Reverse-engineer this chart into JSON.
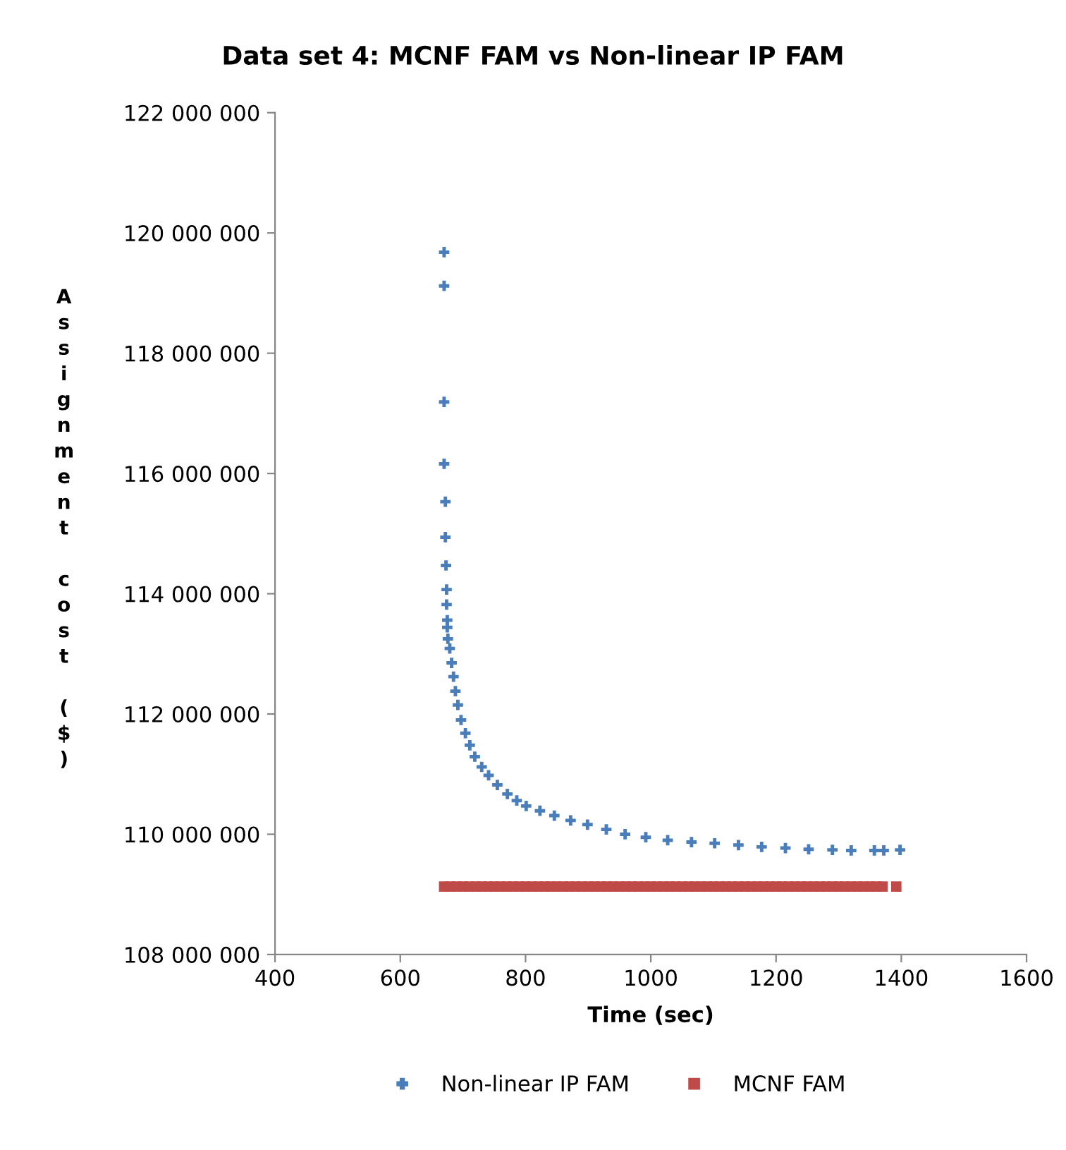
{
  "chart_data": {
    "type": "scatter",
    "title": "Data set 4: MCNF FAM vs Non-linear IP FAM",
    "xlabel": "Time (sec)",
    "ylabel": "Assignment cost ($)",
    "xlim": [
      400,
      1600
    ],
    "xticks": [
      400,
      600,
      800,
      1000,
      1200,
      1400,
      1600
    ],
    "ylim": [
      108000000,
      122000000
    ],
    "yticks": [
      {
        "value": 108000000,
        "label": "108 000 000"
      },
      {
        "value": 110000000,
        "label": "110 000 000"
      },
      {
        "value": 112000000,
        "label": "112 000 000"
      },
      {
        "value": 114000000,
        "label": "114 000 000"
      },
      {
        "value": 116000000,
        "label": "116 000 000"
      },
      {
        "value": 118000000,
        "label": "118 000 000"
      },
      {
        "value": 120000000,
        "label": "120 000 000"
      },
      {
        "value": 122000000,
        "label": "122 000 000"
      }
    ],
    "grid": false,
    "legend": "bottom",
    "series": [
      {
        "name": "Non-linear IP FAM",
        "color": "#4a7ebb",
        "marker": "cross",
        "x": [
          670,
          670,
          670,
          670,
          672,
          672,
          673,
          674,
          674,
          675,
          675,
          676,
          679,
          682,
          685,
          688,
          692,
          697,
          704,
          711,
          719,
          730,
          741,
          755,
          771,
          786,
          801,
          823,
          846,
          872,
          899,
          929,
          959,
          992,
          1027,
          1065,
          1102,
          1140,
          1177,
          1215,
          1252,
          1290,
          1320,
          1357,
          1372,
          1398
        ],
        "values": [
          119680000,
          119120000,
          117190000,
          116160000,
          115530000,
          114940000,
          114470000,
          114070000,
          113820000,
          113560000,
          113440000,
          113250000,
          113090000,
          112850000,
          112620000,
          112380000,
          112150000,
          111900000,
          111680000,
          111480000,
          111290000,
          111120000,
          110980000,
          110820000,
          110670000,
          110560000,
          110470000,
          110390000,
          110310000,
          110230000,
          110160000,
          110080000,
          110000000,
          109950000,
          109900000,
          109870000,
          109850000,
          109820000,
          109790000,
          109770000,
          109750000,
          109740000,
          109730000,
          109730000,
          109730000,
          109740000
        ]
      },
      {
        "name": "MCNF FAM",
        "color": "#be4b48",
        "marker": "square",
        "x": [
          670,
          680,
          690,
          700,
          710,
          720,
          730,
          740,
          750,
          760,
          770,
          780,
          790,
          800,
          810,
          820,
          830,
          840,
          850,
          860,
          870,
          880,
          890,
          900,
          910,
          920,
          930,
          940,
          950,
          960,
          970,
          980,
          990,
          1000,
          1010,
          1020,
          1030,
          1040,
          1050,
          1060,
          1070,
          1080,
          1090,
          1100,
          1110,
          1120,
          1130,
          1140,
          1150,
          1160,
          1170,
          1180,
          1190,
          1200,
          1210,
          1220,
          1230,
          1240,
          1250,
          1260,
          1270,
          1280,
          1290,
          1300,
          1310,
          1320,
          1330,
          1340,
          1350,
          1360,
          1370,
          1392
        ],
        "values": [
          109130000,
          109130000,
          109130000,
          109130000,
          109130000,
          109130000,
          109130000,
          109130000,
          109130000,
          109130000,
          109130000,
          109130000,
          109130000,
          109130000,
          109130000,
          109130000,
          109130000,
          109130000,
          109130000,
          109130000,
          109130000,
          109130000,
          109130000,
          109130000,
          109130000,
          109130000,
          109130000,
          109130000,
          109130000,
          109130000,
          109130000,
          109130000,
          109130000,
          109130000,
          109130000,
          109130000,
          109130000,
          109130000,
          109130000,
          109130000,
          109130000,
          109130000,
          109130000,
          109130000,
          109130000,
          109130000,
          109130000,
          109130000,
          109130000,
          109130000,
          109130000,
          109130000,
          109130000,
          109130000,
          109130000,
          109130000,
          109130000,
          109130000,
          109130000,
          109130000,
          109130000,
          109130000,
          109130000,
          109130000,
          109130000,
          109130000,
          109130000,
          109130000,
          109130000,
          109130000,
          109130000,
          109130000
        ]
      }
    ]
  }
}
